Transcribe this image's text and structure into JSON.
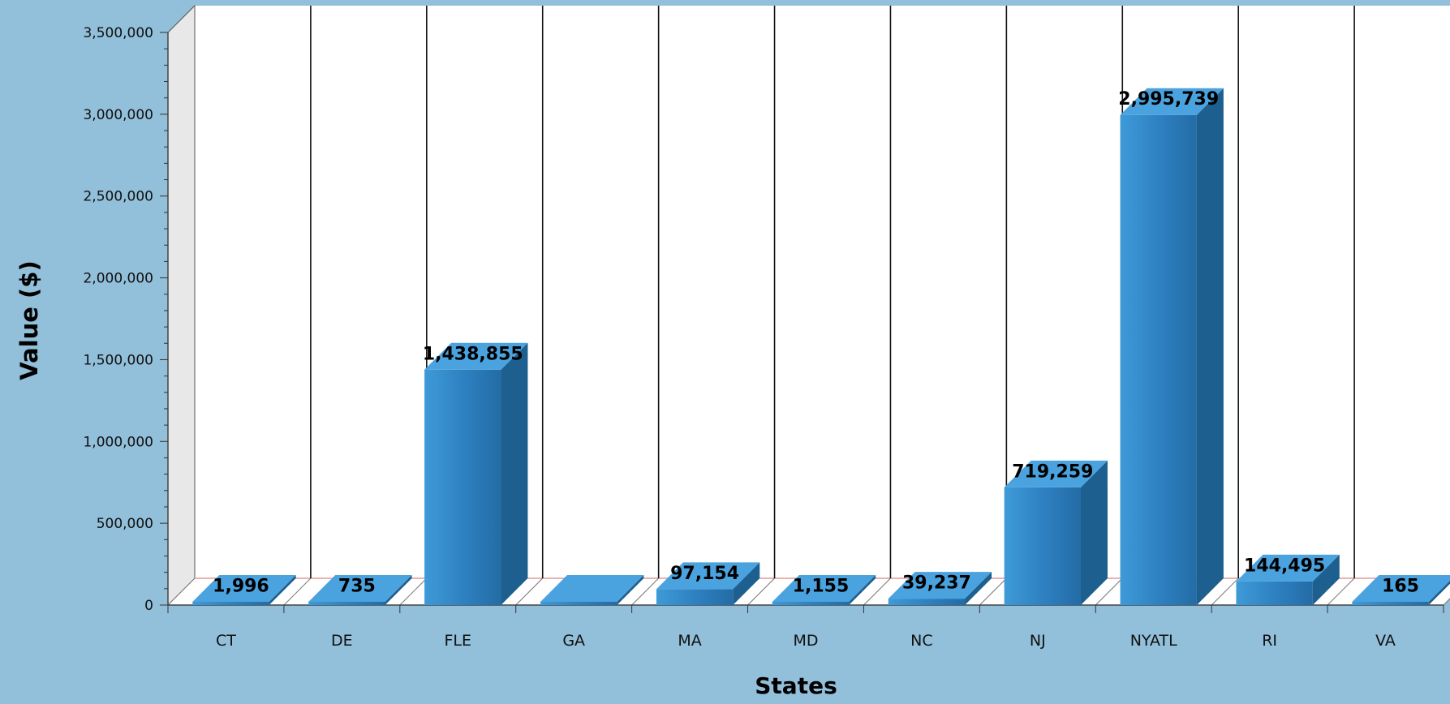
{
  "chart_data": {
    "type": "bar",
    "title": "",
    "xlabel": "States",
    "ylabel": "Value ($)",
    "ylim": [
      0,
      3500000
    ],
    "yticks": [
      0,
      500000,
      1000000,
      1500000,
      2000000,
      2500000,
      3000000,
      3500000
    ],
    "ytick_labels": [
      "0",
      "500,000",
      "1,000,000",
      "1,500,000",
      "2,000,000",
      "2,500,000",
      "3,000,000",
      "3,500,000"
    ],
    "categories": [
      "CT",
      "DE",
      "FLE",
      "GA",
      "MA",
      "MD",
      "NC",
      "NJ",
      "NYATL",
      "RI",
      "VA"
    ],
    "values": [
      1996,
      735,
      1438855,
      0,
      97154,
      1155,
      39237,
      719259,
      2995739,
      144495,
      165
    ],
    "data_labels": [
      "1,996",
      "735",
      "1,438,855",
      "",
      "97,154",
      "1,155",
      "39,237",
      "719,259",
      "2,995,739",
      "144,495",
      "165"
    ],
    "grid": "vertical lines between categories",
    "style": "3d",
    "colors": {
      "background": "#92bfd9",
      "plot_background": "#ffffff",
      "side_wall": "#e8e8e8",
      "bar_front": "#2f86c4",
      "bar_top": "#4aa3df",
      "bar_side": "#1d5f8e"
    }
  }
}
